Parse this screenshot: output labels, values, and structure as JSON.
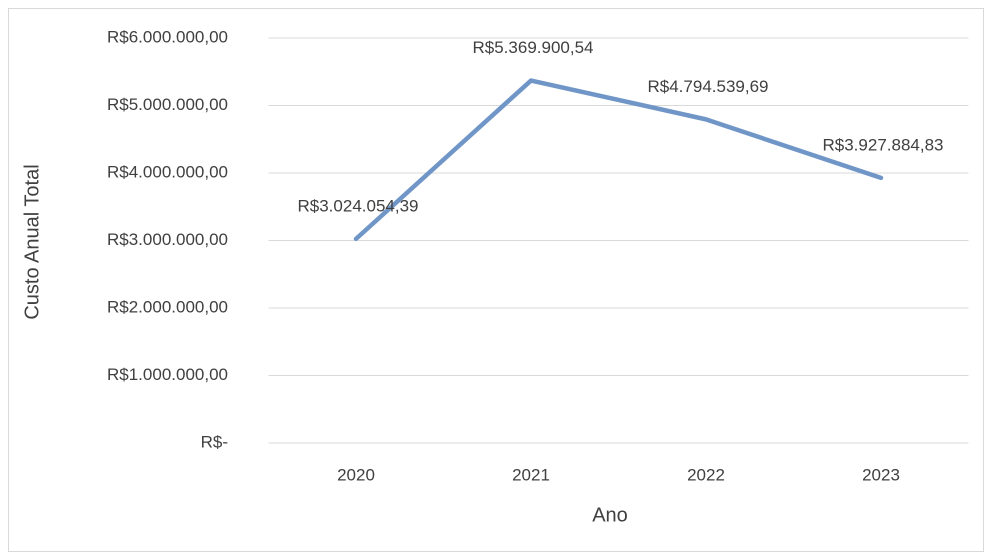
{
  "chart_data": {
    "type": "line",
    "x_label": "Ano",
    "y_label": "Custo Anual Total",
    "categories": [
      "2020",
      "2021",
      "2022",
      "2023"
    ],
    "series": [
      {
        "name": "Custo Anual Total",
        "color": "#7096c8",
        "values": [
          3024054.39,
          5369900.54,
          4794539.69,
          3927884.83
        ],
        "value_labels": [
          "R$3.024.054,39",
          "R$5.369.900,54",
          "R$4.794.539,69",
          "R$3.927.884,83"
        ]
      }
    ],
    "ylim": [
      0,
      6000000
    ],
    "yticks": [
      {
        "value": 0,
        "label": "R$-"
      },
      {
        "value": 1000000,
        "label": "R$1.000.000,00"
      },
      {
        "value": 2000000,
        "label": "R$2.000.000,00"
      },
      {
        "value": 3000000,
        "label": "R$3.000.000,00"
      },
      {
        "value": 4000000,
        "label": "R$4.000.000,00"
      },
      {
        "value": 5000000,
        "label": "R$5.000.000,00"
      },
      {
        "value": 6000000,
        "label": "R$6.000.000,00"
      }
    ],
    "grid": true
  }
}
